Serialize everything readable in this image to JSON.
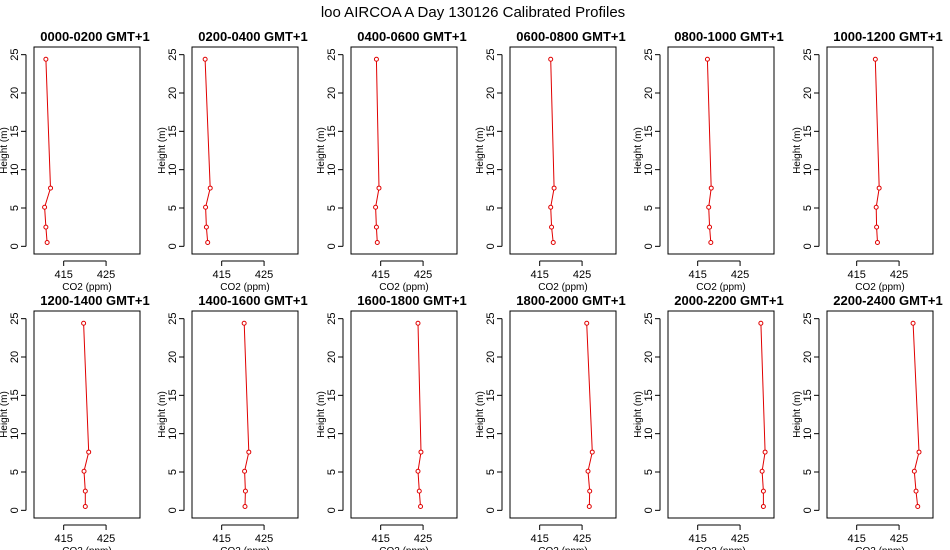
{
  "title": "loo AIRCOA A  Day 130126  Calibrated Profiles",
  "colors": {
    "line": "#e00000",
    "axis": "#000000",
    "background": "#ffffff"
  },
  "chart_data": {
    "type": "line",
    "xlabel": "CO2 (ppm)",
    "ylabel": "Height (m)",
    "xlim": [
      408,
      433
    ],
    "ylim": [
      -1,
      26
    ],
    "xticks": [
      415,
      425
    ],
    "yticks": [
      0,
      5,
      10,
      15,
      20,
      25
    ],
    "heights": [
      24.4,
      7.6,
      5.1,
      2.5,
      0.5
    ],
    "grid": false,
    "legend": "none",
    "panels": [
      {
        "title": "0000-0200 GMT+1",
        "co2": [
          410.8,
          411.9,
          410.5,
          410.8,
          411.1
        ]
      },
      {
        "title": "0200-0400 GMT+1",
        "co2": [
          411.1,
          412.3,
          411.2,
          411.4,
          411.7
        ]
      },
      {
        "title": "0400-0600 GMT+1",
        "co2": [
          414.0,
          414.6,
          413.8,
          414.0,
          414.2
        ]
      },
      {
        "title": "0600-0800 GMT+1",
        "co2": [
          417.6,
          418.4,
          417.6,
          417.8,
          418.2
        ]
      },
      {
        "title": "0800-1000 GMT+1",
        "co2": [
          417.3,
          418.2,
          417.6,
          417.8,
          418.1
        ]
      },
      {
        "title": "1000-1200 GMT+1",
        "co2": [
          419.4,
          420.3,
          419.6,
          419.7,
          419.9
        ]
      },
      {
        "title": "1200-1400 GMT+1",
        "co2": [
          419.7,
          420.9,
          419.8,
          420.1,
          420.1
        ]
      },
      {
        "title": "1400-1600 GMT+1",
        "co2": [
          420.3,
          421.4,
          420.4,
          420.6,
          420.5
        ]
      },
      {
        "title": "1600-1800 GMT+1",
        "co2": [
          423.8,
          424.5,
          423.8,
          424.1,
          424.4
        ]
      },
      {
        "title": "1800-2000 GMT+1",
        "co2": [
          426.1,
          427.4,
          426.4,
          426.8,
          426.7
        ]
      },
      {
        "title": "2000-2200 GMT+1",
        "co2": [
          429.9,
          430.9,
          430.2,
          430.5,
          430.5
        ]
      },
      {
        "title": "2200-2400 GMT+1",
        "co2": [
          428.3,
          429.7,
          428.6,
          429.0,
          429.4
        ]
      }
    ]
  }
}
